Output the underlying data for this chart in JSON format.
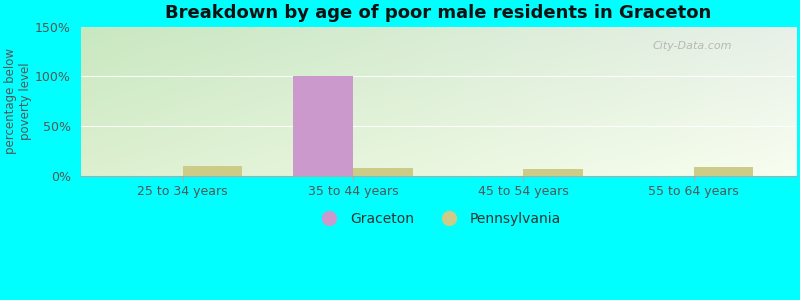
{
  "title": "Breakdown by age of poor male residents in Graceton",
  "ylabel": "percentage below\npoverty level",
  "categories": [
    "25 to 34 years",
    "35 to 44 years",
    "45 to 54 years",
    "55 to 64 years"
  ],
  "graceton_values": [
    0,
    100,
    0,
    0
  ],
  "pennsylvania_values": [
    10,
    8,
    7,
    9
  ],
  "graceton_color": "#cc99cc",
  "pennsylvania_color": "#cccc88",
  "bar_width": 0.35,
  "ylim": [
    0,
    150
  ],
  "yticks": [
    0,
    50,
    100,
    150
  ],
  "ytick_labels": [
    "0%",
    "50%",
    "100%",
    "150%"
  ],
  "bg_color_topleft": "#c8e8c0",
  "bg_color_topright": "#e8f0e8",
  "bg_color_bottomleft": "#ddf0d0",
  "bg_color_bottomright": "#f8fef0",
  "outer_background": "#00ffff",
  "title_fontsize": 13,
  "axis_label_fontsize": 8.5,
  "tick_fontsize": 9,
  "legend_fontsize": 10,
  "watermark": "City-Data.com"
}
